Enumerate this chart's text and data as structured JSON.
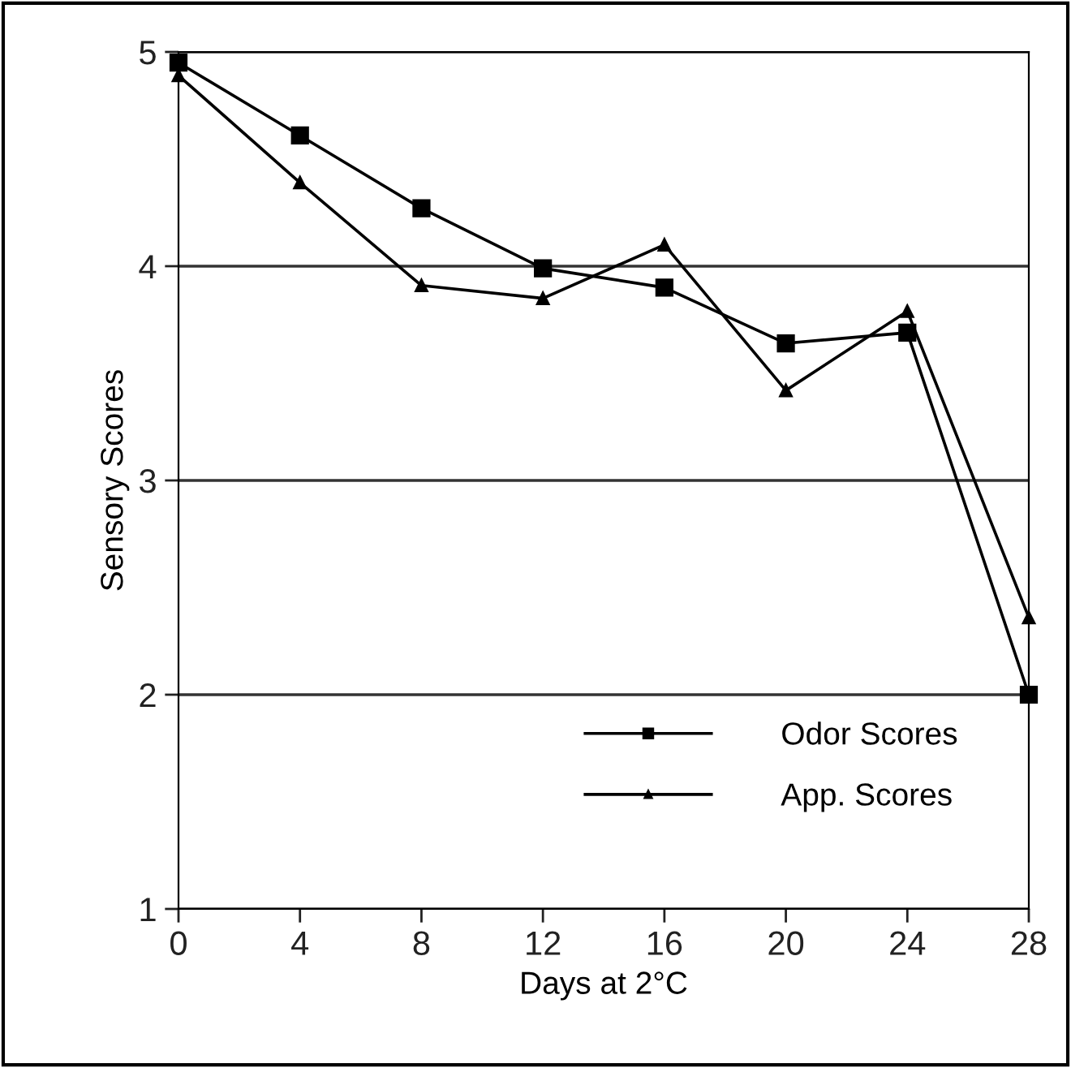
{
  "chart_data": {
    "type": "line",
    "xlabel": "Days at 2°C",
    "ylabel": "Sensory Scores",
    "x": [
      0,
      4,
      8,
      12,
      16,
      20,
      24,
      28
    ],
    "series": [
      {
        "name": "Odor Scores",
        "color": "#000000",
        "marker": "square",
        "values": [
          4.95,
          4.61,
          4.27,
          3.99,
          3.9,
          3.64,
          3.69,
          2.0
        ]
      },
      {
        "name": "App. Scores",
        "color": "#000000",
        "marker": "triangle",
        "values": [
          4.89,
          4.39,
          3.91,
          3.85,
          4.1,
          3.42,
          3.79,
          2.36
        ]
      }
    ],
    "xlim": [
      0,
      28
    ],
    "xticks": [
      0,
      4,
      8,
      12,
      16,
      20,
      24,
      28
    ],
    "ylim": [
      1,
      5
    ],
    "yticks": [
      1,
      2,
      3,
      4,
      5
    ],
    "grid": "y",
    "legend": "bottom right",
    "line_style": "solid"
  }
}
